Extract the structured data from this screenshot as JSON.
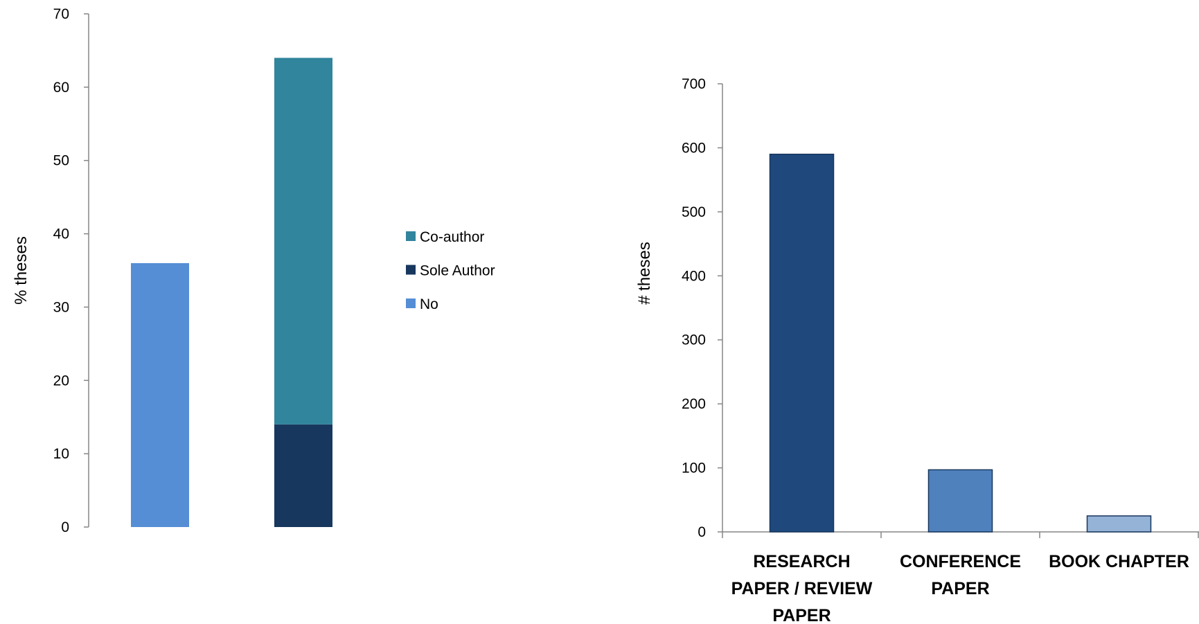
{
  "chart_data": [
    {
      "type": "bar",
      "stacked": true,
      "categories": [
        "",
        ""
      ],
      "ylabel": "% theses",
      "ylim": [
        0,
        70
      ],
      "yticks": [
        0,
        10,
        20,
        30,
        40,
        50,
        60,
        70
      ],
      "legend_position": "right",
      "grid": false,
      "series": [
        {
          "name": "No",
          "values": [
            36,
            0
          ],
          "color": "#558ED5"
        },
        {
          "name": "Sole Author",
          "values": [
            0,
            14
          ],
          "color": "#17375E"
        },
        {
          "name": "Co-author",
          "values": [
            0,
            50
          ],
          "color": "#31859C"
        }
      ],
      "legend_order": [
        "Co-author",
        "Sole Author",
        "No"
      ]
    },
    {
      "type": "bar",
      "categories": [
        "RESEARCH PAPER / REVIEW PAPER",
        "CONFERENCE PAPER",
        "BOOK CHAPTER"
      ],
      "category_lines": [
        [
          "RESEARCH",
          "PAPER / REVIEW",
          "PAPER"
        ],
        [
          "CONFERENCE",
          "PAPER"
        ],
        [
          "BOOK CHAPTER"
        ]
      ],
      "values": [
        590,
        97,
        25
      ],
      "colors": [
        "#1F497D",
        "#4F81BD",
        "#95B3D7"
      ],
      "ylabel": "# theses",
      "ylim": [
        0,
        700
      ],
      "yticks": [
        0,
        100,
        200,
        300,
        400,
        500,
        600,
        700
      ],
      "grid": false
    }
  ]
}
